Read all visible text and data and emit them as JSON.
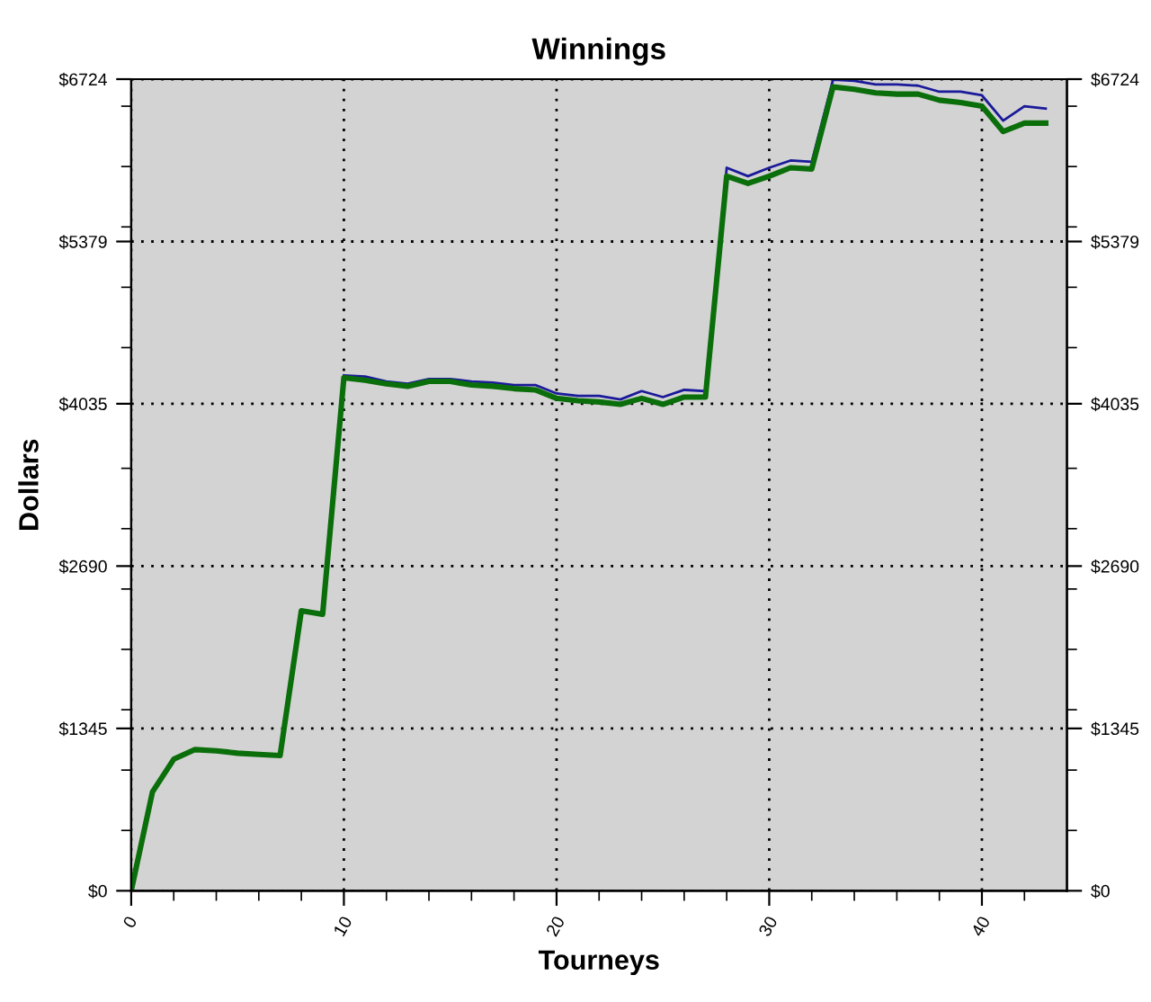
{
  "chart_data": {
    "type": "line",
    "title": "Winnings",
    "xlabel": "Tourneys",
    "ylabel": "Dollars",
    "x": [
      0,
      1,
      2,
      3,
      4,
      5,
      6,
      7,
      8,
      9,
      10,
      11,
      12,
      13,
      14,
      15,
      16,
      17,
      18,
      19,
      20,
      21,
      22,
      23,
      24,
      25,
      26,
      27,
      28,
      29,
      30,
      31,
      32,
      33,
      34,
      35,
      36,
      37,
      38,
      39,
      40,
      41,
      42,
      43
    ],
    "series": [
      {
        "color": "#1a1a9a",
        "values": [
          null,
          null,
          null,
          null,
          null,
          null,
          null,
          null,
          null,
          null,
          4270,
          4260,
          4220,
          4200,
          4240,
          4240,
          4220,
          4210,
          4190,
          4190,
          4120,
          4100,
          4100,
          4070,
          4140,
          4090,
          4150,
          4140,
          5990,
          5920,
          5990,
          6050,
          6040,
          6720,
          6710,
          6680,
          6680,
          6670,
          6620,
          6620,
          6590,
          6380,
          6500,
          6480
        ]
      },
      {
        "color": "#0a6e0a",
        "values": [
          0,
          820,
          1090,
          1170,
          1160,
          1140,
          1130,
          1120,
          2320,
          2290,
          4250,
          4230,
          4200,
          4180,
          4220,
          4220,
          4190,
          4180,
          4160,
          4150,
          4080,
          4060,
          4050,
          4030,
          4080,
          4030,
          4090,
          4090,
          5920,
          5860,
          5920,
          5990,
          5980,
          6660,
          6640,
          6610,
          6600,
          6600,
          6550,
          6530,
          6500,
          6290,
          6360,
          6360
        ]
      }
    ],
    "xlim": [
      0,
      44
    ],
    "xticks": [
      0,
      {
        "value": 2,
        "label": null
      },
      {
        "value": 4,
        "label": null
      },
      {
        "value": 6,
        "label": null
      },
      {
        "value": 8,
        "label": null
      },
      10,
      {
        "value": 12,
        "label": null
      },
      {
        "value": 14,
        "label": null
      },
      {
        "value": 16,
        "label": null
      },
      {
        "value": 18,
        "label": null
      },
      20,
      {
        "value": 22,
        "label": null
      },
      {
        "value": 24,
        "label": null
      },
      {
        "value": 26,
        "label": null
      },
      {
        "value": 28,
        "label": null
      },
      30,
      {
        "value": 32,
        "label": null
      },
      {
        "value": 34,
        "label": null
      },
      {
        "value": 36,
        "label": null
      },
      {
        "value": 38,
        "label": null
      },
      40,
      {
        "value": 42,
        "label": null
      }
    ],
    "ylim": [
      0,
      6724
    ],
    "yticks": [
      {
        "value": 0,
        "label": "$0"
      },
      {
        "value": 500,
        "label": null
      },
      {
        "value": 1000,
        "label": null
      },
      {
        "value": 1345,
        "label": "$1345"
      },
      {
        "value": 1500,
        "label": null
      },
      {
        "value": 2000,
        "label": null
      },
      {
        "value": 2500,
        "label": null
      },
      {
        "value": 2690,
        "label": "$2690"
      },
      {
        "value": 3000,
        "label": null
      },
      {
        "value": 3500,
        "label": null
      },
      {
        "value": 4035,
        "label": "$4035"
      },
      {
        "value": 4500,
        "label": null
      },
      {
        "value": 5000,
        "label": null
      },
      {
        "value": 5379,
        "label": "$5379"
      },
      {
        "value": 5500,
        "label": null
      },
      {
        "value": 6000,
        "label": null
      },
      {
        "value": 6500,
        "label": null
      },
      {
        "value": 6724,
        "label": "$6724"
      }
    ],
    "y2lim": [
      0,
      6724
    ],
    "y2ticks": [
      {
        "value": 0,
        "label": "$0"
      },
      {
        "value": 500,
        "label": null
      },
      {
        "value": 1000,
        "label": null
      },
      {
        "value": 1345,
        "label": "$1345"
      },
      {
        "value": 1500,
        "label": null
      },
      {
        "value": 2000,
        "label": null
      },
      {
        "value": 2500,
        "label": null
      },
      {
        "value": 2690,
        "label": "$2690"
      },
      {
        "value": 3000,
        "label": null
      },
      {
        "value": 3500,
        "label": null
      },
      {
        "value": 4035,
        "label": "$4035"
      },
      {
        "value": 4500,
        "label": null
      },
      {
        "value": 5000,
        "label": null
      },
      {
        "value": 5379,
        "label": "$5379"
      },
      {
        "value": 5500,
        "label": null
      },
      {
        "value": 6000,
        "label": null
      },
      {
        "value": 6500,
        "label": null
      },
      {
        "value": 6724,
        "label": "$6724"
      }
    ],
    "grid": true,
    "marker": "none",
    "line_style": "solid"
  }
}
